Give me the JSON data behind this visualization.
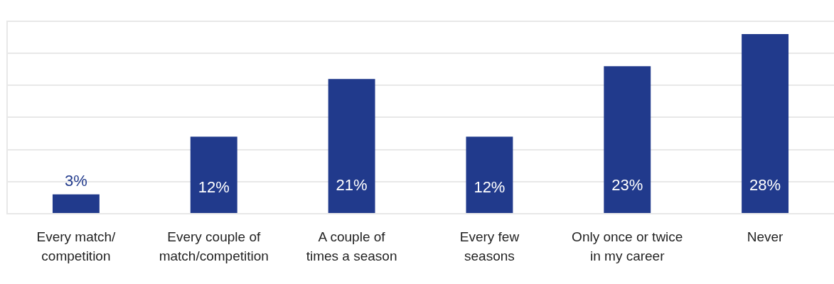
{
  "chart_data": {
    "type": "bar",
    "categories": [
      "Every match/ competition",
      "Every couple of match/competition",
      "A couple of times a season",
      "Every few seasons",
      "Only once or twice in my career",
      "Never"
    ],
    "values": [
      3,
      12,
      21,
      12,
      23,
      28
    ],
    "value_labels": [
      "3%",
      "12%",
      "21%",
      "12%",
      "23%",
      "28%"
    ],
    "color": "#213a8c",
    "grid": "y",
    "tick_labels": "x",
    "legend": false
  }
}
